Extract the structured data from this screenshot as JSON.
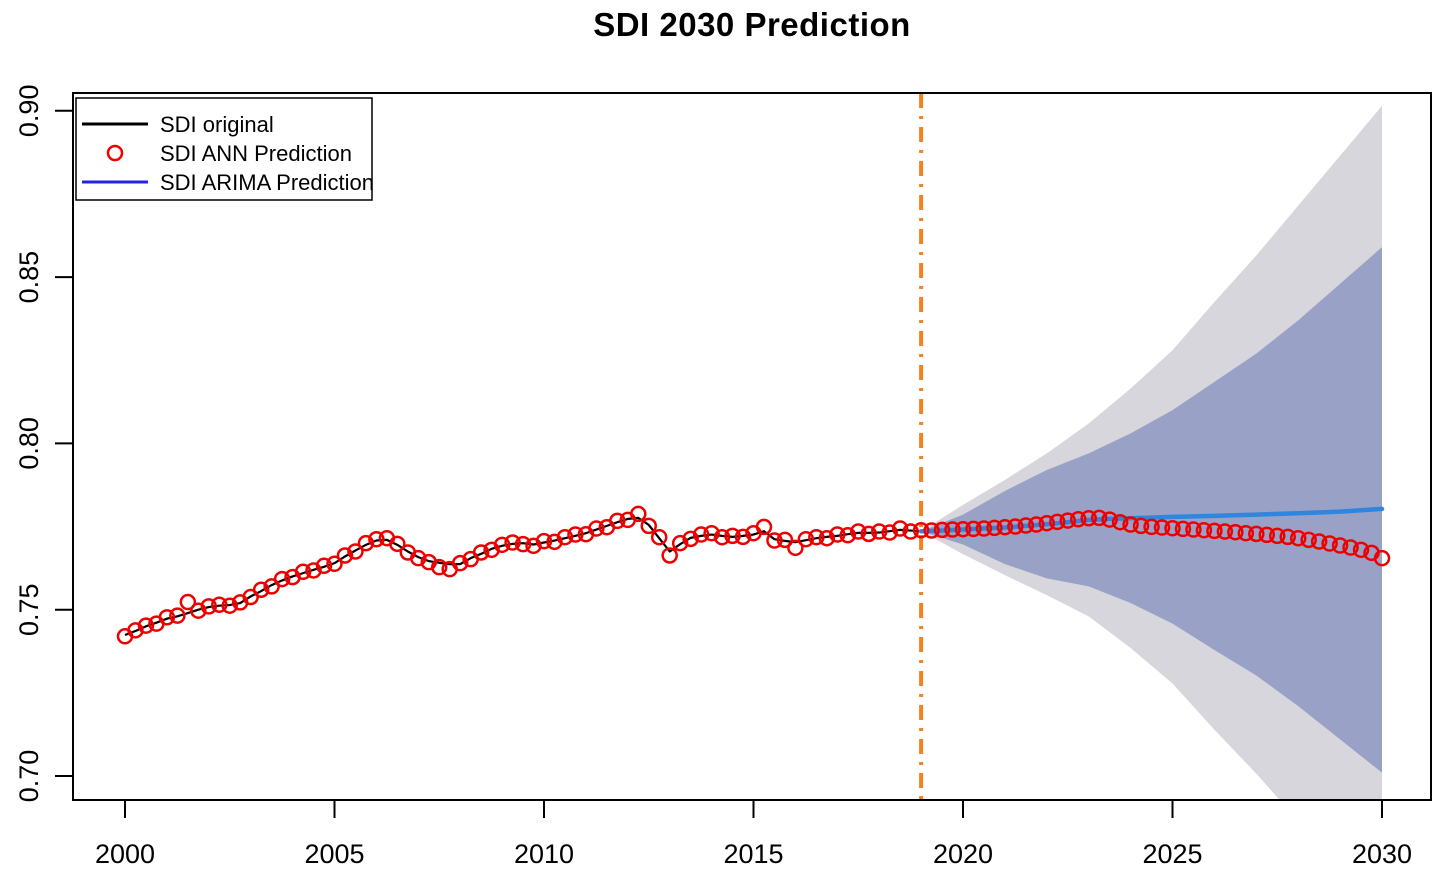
{
  "chart_data": {
    "type": "line",
    "title": "SDI 2030 Prediction",
    "x_axis": {
      "ticks": [
        2000,
        2005,
        2010,
        2015,
        2020,
        2025,
        2030
      ],
      "tick_labels": [
        "2000",
        "2005",
        "2010",
        "2015",
        "2020",
        "2025",
        "2030"
      ],
      "range_shown": [
        1998.8,
        2031.2
      ]
    },
    "y_axis": {
      "ticks": [
        0.7,
        0.75,
        0.8,
        0.85,
        0.9
      ],
      "tick_labels": [
        "0.70",
        "0.75",
        "0.80",
        "0.85",
        "0.90"
      ],
      "range_shown": [
        0.693,
        0.905
      ]
    },
    "legend": {
      "position": "topleft",
      "items": [
        {
          "label": "SDI original",
          "swatch": "line",
          "color": "#000000"
        },
        {
          "label": "SDI ANN Prediction",
          "swatch": "circle",
          "color": "#EE0000"
        },
        {
          "label": "SDI ARIMA Prediction",
          "swatch": "line",
          "color": "#2222EE"
        }
      ]
    },
    "colors": {
      "original_line": "#000000",
      "ann_points": "#EE0000",
      "arima_line": "#2E86DE",
      "cutoff_line": "#F5821F",
      "ci95_band": "#D6D6DC",
      "ci80_band": "#99A2C6"
    },
    "forecast_cutoff_year": 2019,
    "series": {
      "original": {
        "name": "SDI original",
        "x_start": 2000,
        "x_step": 0.25,
        "values": [
          0.7424,
          0.7436,
          0.745,
          0.7461,
          0.7473,
          0.748,
          0.749,
          0.75,
          0.7508,
          0.7512,
          0.7514,
          0.752,
          0.754,
          0.7556,
          0.7574,
          0.7588,
          0.76,
          0.761,
          0.762,
          0.7629,
          0.764,
          0.766,
          0.7678,
          0.7695,
          0.7708,
          0.771,
          0.7695,
          0.7675,
          0.7658,
          0.7646,
          0.7641,
          0.7637,
          0.7637,
          0.7655,
          0.7668,
          0.7683,
          0.7692,
          0.7698,
          0.77,
          0.7696,
          0.7702,
          0.7708,
          0.7715,
          0.7722,
          0.773,
          0.7741,
          0.7752,
          0.7763,
          0.7773,
          0.7776,
          0.7755,
          0.7715,
          0.7675,
          0.7697,
          0.7716,
          0.7722,
          0.7726,
          0.7722,
          0.7719,
          0.7722,
          0.7726,
          0.7736,
          0.7712,
          0.7707,
          0.7703,
          0.7709,
          0.7715,
          0.7719,
          0.7722,
          0.7727,
          0.7731,
          0.7731,
          0.7732,
          0.7736,
          0.774,
          0.7738,
          0.7736
        ]
      },
      "ann": {
        "name": "SDI ANN Prediction",
        "x_start": 2000,
        "x_step": 0.25,
        "values": [
          0.742,
          0.7438,
          0.7452,
          0.7458,
          0.7477,
          0.7482,
          0.7523,
          0.7497,
          0.751,
          0.7515,
          0.7512,
          0.7522,
          0.7538,
          0.756,
          0.757,
          0.7592,
          0.7598,
          0.7614,
          0.7618,
          0.7632,
          0.7638,
          0.7663,
          0.7675,
          0.77,
          0.7712,
          0.7715,
          0.7698,
          0.7672,
          0.7655,
          0.7643,
          0.7628,
          0.7622,
          0.764,
          0.7652,
          0.7672,
          0.768,
          0.7695,
          0.7702,
          0.7697,
          0.7692,
          0.7706,
          0.7704,
          0.7718,
          0.7726,
          0.7727,
          0.7744,
          0.7748,
          0.7767,
          0.777,
          0.7788,
          0.7752,
          0.7718,
          0.7663,
          0.77,
          0.7713,
          0.7726,
          0.773,
          0.7718,
          0.7722,
          0.7719,
          0.773,
          0.7749,
          0.7708,
          0.771,
          0.7686,
          0.7712,
          0.7718,
          0.7715,
          0.7726,
          0.7724,
          0.7735,
          0.7728,
          0.7735,
          0.7732,
          0.7744,
          0.7735,
          0.7739,
          0.7738,
          0.774,
          0.7741,
          0.7742,
          0.7743,
          0.7744,
          0.7746,
          0.7748,
          0.775,
          0.7753,
          0.7756,
          0.776,
          0.7764,
          0.7768,
          0.7772,
          0.7775,
          0.7776,
          0.7771,
          0.7763,
          0.7756,
          0.7752,
          0.7749,
          0.7747,
          0.7745,
          0.7743,
          0.7741,
          0.7739,
          0.7737,
          0.7735,
          0.7733,
          0.773,
          0.7728,
          0.7725,
          0.7722,
          0.7719,
          0.7715,
          0.771,
          0.7705,
          0.7699,
          0.7693,
          0.7687,
          0.768,
          0.7671,
          0.7655
        ]
      },
      "arima": {
        "name": "SDI ARIMA Prediction",
        "x": [
          2019,
          2019.5,
          2020,
          2020.5,
          2021,
          2021.5,
          2022,
          2022.5,
          2023,
          2023.5,
          2024,
          2025,
          2026,
          2027,
          2028,
          2029,
          2030
        ],
        "values": [
          0.7736,
          0.7738,
          0.7741,
          0.7744,
          0.7747,
          0.7752,
          0.7757,
          0.7763,
          0.777,
          0.7773,
          0.7775,
          0.7779,
          0.7782,
          0.7786,
          0.779,
          0.7795,
          0.7803
        ]
      },
      "ci80": {
        "name": "ARIMA 80% interval",
        "x": [
          2019,
          2020,
          2021,
          2022,
          2023,
          2024,
          2025,
          2026,
          2027,
          2028,
          2029,
          2030
        ],
        "upper": [
          0.7736,
          0.7786,
          0.7857,
          0.792,
          0.797,
          0.803,
          0.81,
          0.8185,
          0.827,
          0.837,
          0.848,
          0.859
        ],
        "lower": [
          0.7736,
          0.7696,
          0.7637,
          0.7594,
          0.757,
          0.752,
          0.7458,
          0.7379,
          0.7302,
          0.721,
          0.711,
          0.701
        ]
      },
      "ci95": {
        "name": "ARIMA 95% interval",
        "x": [
          2019,
          2020,
          2021,
          2022,
          2023,
          2024,
          2025,
          2026,
          2027,
          2028,
          2029,
          2030
        ],
        "upper": [
          0.7736,
          0.7815,
          0.789,
          0.797,
          0.806,
          0.8165,
          0.828,
          0.8425,
          0.8565,
          0.8715,
          0.8865,
          0.9015
        ],
        "lower": [
          0.7736,
          0.7667,
          0.7604,
          0.7544,
          0.748,
          0.7385,
          0.7278,
          0.7139,
          0.7007,
          0.6865,
          0.6725,
          0.6585
        ]
      }
    }
  }
}
